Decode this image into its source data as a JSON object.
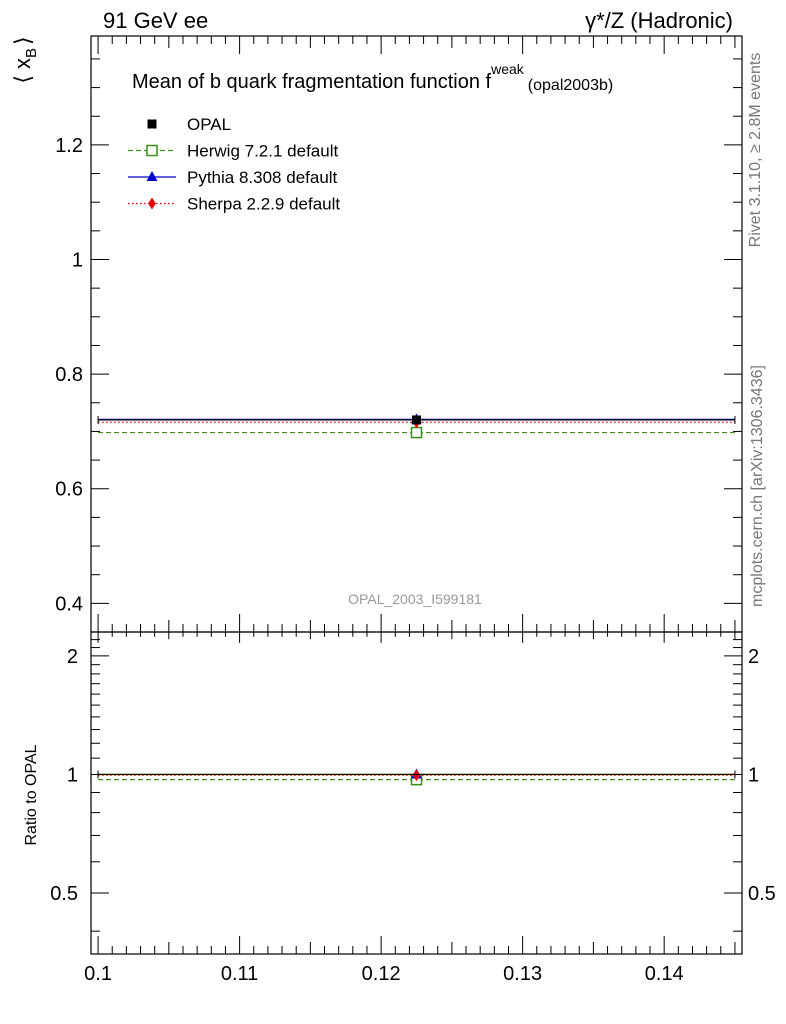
{
  "header": {
    "left": "91 GeV ee",
    "right": "γ*/Z (Hadronic)"
  },
  "side_labels": {
    "rivet": "Rivet 3.1.10, ≥ 2.8M events",
    "mcplots": "mcplots.cern.ch [arXiv:1306.3436]"
  },
  "chart_data": [
    {
      "type": "line",
      "title_main": "Mean of b quark fragmentation function f",
      "title_sup": "weak",
      "title_sub": "(opal2003b)",
      "ylabel_main": "⟨ x",
      "ylabel_sub": "B",
      "ylabel_close": "⟩",
      "watermark": "OPAL_2003_I599181",
      "xlim": [
        0.0995,
        0.1455
      ],
      "ylim": [
        0.35,
        1.39
      ],
      "y_ticks": [
        0.4,
        0.6,
        0.8,
        1,
        1.2
      ],
      "y_tick_labels": [
        "0.4",
        "0.6",
        "0.8",
        "1",
        "1.2"
      ],
      "legend_position": "top-left",
      "series": [
        {
          "name": "OPAL",
          "style": "data",
          "color": "#000000",
          "marker": "square-filled",
          "x": 0.1225,
          "y": 0.72,
          "xrange": [
            0.1,
            0.145
          ]
        },
        {
          "name": "Herwig 7.2.1 default",
          "style": "dashed",
          "color": "#3a8c1a",
          "marker": "square-open",
          "x": 0.1225,
          "y": 0.698,
          "xrange": [
            0.1,
            0.145
          ]
        },
        {
          "name": "Pythia 8.308 default",
          "style": "solid",
          "color": "#0000cc",
          "marker": "triangle",
          "x": 0.1225,
          "y": 0.721,
          "xrange": [
            0.1,
            0.145
          ]
        },
        {
          "name": "Sherpa 2.2.9 default",
          "style": "dotted",
          "color": "#e60000",
          "marker": "diamond",
          "x": 0.1225,
          "y": 0.716,
          "xrange": [
            0.1,
            0.145
          ]
        }
      ]
    },
    {
      "type": "line",
      "ylabel": "Ratio to OPAL",
      "xlim": [
        0.0995,
        0.1455
      ],
      "ylim": [
        0.35,
        2.3
      ],
      "y_ticks": [
        0.5,
        1,
        2
      ],
      "y_tick_labels": [
        "0.5",
        "1",
        "2"
      ],
      "x_ticks": [
        0.1,
        0.11,
        0.12,
        0.13,
        0.14
      ],
      "x_tick_labels": [
        "0.1",
        "0.11",
        "0.12",
        "0.13",
        "0.14"
      ],
      "band": {
        "lower": 0.995,
        "upper": 1.005,
        "color": "#ffe000"
      },
      "series": [
        {
          "name": "OPAL",
          "style": "data",
          "color": "#000000",
          "marker": "none",
          "x": 0.1225,
          "y": 1.0,
          "xrange": [
            0.1,
            0.145
          ]
        },
        {
          "name": "Herwig 7.2.1 default",
          "style": "dashed",
          "color": "#3a8c1a",
          "marker": "square-open",
          "x": 0.1225,
          "y": 0.97,
          "xrange": [
            0.1,
            0.145
          ]
        },
        {
          "name": "Pythia 8.308 default",
          "style": "solid",
          "color": "#0000cc",
          "marker": "triangle",
          "x": 0.1225,
          "y": 1.0,
          "xrange": [
            0.1,
            0.145
          ]
        },
        {
          "name": "Sherpa 2.2.9 default",
          "style": "dotted",
          "color": "#e60000",
          "marker": "diamond",
          "x": 0.1225,
          "y": 0.995,
          "xrange": [
            0.1,
            0.145
          ]
        }
      ]
    }
  ]
}
